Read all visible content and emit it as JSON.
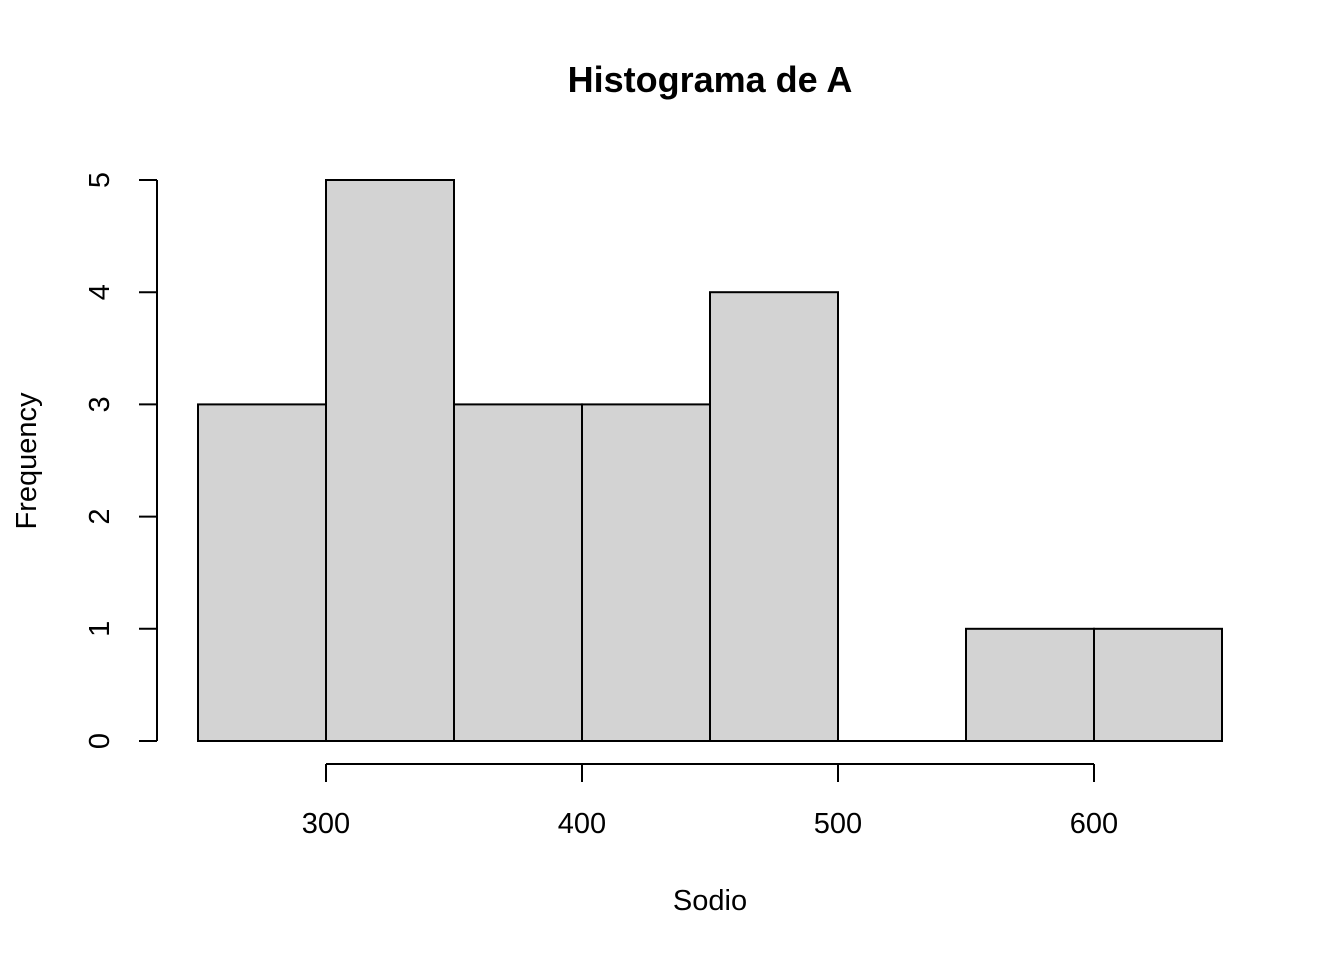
{
  "chart_data": {
    "type": "bar",
    "title": "Histograma de A",
    "xlabel": "Sodio",
    "ylabel": "Frequency",
    "bins": [
      {
        "from": 250,
        "to": 300,
        "count": 3
      },
      {
        "from": 300,
        "to": 350,
        "count": 5
      },
      {
        "from": 350,
        "to": 400,
        "count": 3
      },
      {
        "from": 400,
        "to": 450,
        "count": 3
      },
      {
        "from": 450,
        "to": 500,
        "count": 4
      },
      {
        "from": 500,
        "to": 550,
        "count": 0
      },
      {
        "from": 550,
        "to": 600,
        "count": 1
      },
      {
        "from": 600,
        "to": 650,
        "count": 1
      }
    ],
    "xlim": [
      250,
      650
    ],
    "ylim": [
      0,
      5
    ],
    "x_ticks": [
      "300",
      "400",
      "500",
      "600"
    ],
    "y_ticks": [
      "0",
      "1",
      "2",
      "3",
      "4",
      "5"
    ],
    "bar_color": "#d3d3d3",
    "edge_color": "#000000",
    "grid": false
  }
}
